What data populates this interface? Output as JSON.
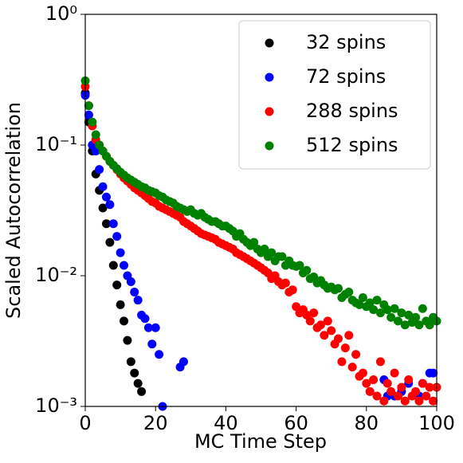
{
  "chart_data": {
    "type": "scatter",
    "xlabel": "MC Time Step",
    "ylabel": "Scaled Autocorrelation",
    "xlim": [
      0,
      100
    ],
    "xticks": [
      0,
      20,
      40,
      60,
      80,
      100
    ],
    "ylim": [
      0.001,
      1
    ],
    "ylog": true,
    "yticks": [
      {
        "value": 0.001,
        "label": "10⁻³"
      },
      {
        "value": 0.01,
        "label": "10⁻²"
      },
      {
        "value": 0.1,
        "label": "10⁻¹"
      },
      {
        "value": 1,
        "label": "10⁰"
      }
    ],
    "legend": "upper right",
    "series": [
      {
        "name": "32 spins",
        "color": "#000000",
        "x": [
          0,
          1,
          2,
          3,
          4,
          5,
          6,
          7,
          8,
          9,
          10,
          11,
          12,
          13,
          14,
          15,
          16
        ],
        "values": [
          0.25,
          0.15,
          0.09,
          0.06,
          0.045,
          0.033,
          0.025,
          0.018,
          0.012,
          0.0085,
          0.006,
          0.0045,
          0.0032,
          0.0022,
          0.0018,
          0.0015,
          0.0013
        ]
      },
      {
        "name": "72 spins",
        "color": "#0000ff",
        "x": [
          0,
          1,
          2,
          3,
          4,
          5,
          6,
          7,
          8,
          9,
          10,
          11,
          12,
          13,
          14,
          15,
          16,
          17,
          18,
          19,
          20,
          21,
          22,
          27,
          28,
          85,
          86,
          88,
          90,
          92,
          95,
          96,
          98,
          99
        ],
        "values": [
          0.24,
          0.17,
          0.1,
          0.09,
          0.065,
          0.048,
          0.04,
          0.035,
          0.025,
          0.02,
          0.015,
          0.012,
          0.01,
          0.009,
          0.0075,
          0.0065,
          0.005,
          0.0047,
          0.004,
          0.003,
          0.004,
          0.0025,
          0.001,
          0.002,
          0.0022,
          0.0016,
          0.0012,
          0.0012,
          0.0013,
          0.0015,
          0.0012,
          0.0015,
          0.0018,
          0.0018
        ]
      },
      {
        "name": "288 spins",
        "color": "#ff0000",
        "x": [
          0,
          1,
          2,
          3,
          4,
          5,
          6,
          7,
          8,
          9,
          10,
          11,
          12,
          13,
          14,
          15,
          16,
          17,
          18,
          19,
          20,
          21,
          22,
          23,
          24,
          25,
          26,
          27,
          28,
          29,
          30,
          31,
          32,
          33,
          34,
          35,
          36,
          37,
          38,
          39,
          40,
          41,
          42,
          43,
          44,
          45,
          46,
          47,
          48,
          49,
          50,
          51,
          52,
          53,
          54,
          55,
          56,
          57,
          58,
          59,
          60,
          61,
          62,
          63,
          64,
          65,
          66,
          67,
          68,
          69,
          70,
          71,
          72,
          73,
          74,
          75,
          76,
          77,
          78,
          79,
          80,
          81,
          82,
          83,
          84,
          85,
          86,
          87,
          88,
          89,
          90,
          91,
          92,
          93,
          94,
          95,
          96,
          97,
          98,
          99,
          100
        ],
        "values": [
          0.28,
          0.2,
          0.14,
          0.11,
          0.1,
          0.09,
          0.082,
          0.075,
          0.07,
          0.065,
          0.06,
          0.056,
          0.053,
          0.05,
          0.047,
          0.045,
          0.043,
          0.041,
          0.039,
          0.037,
          0.036,
          0.034,
          0.033,
          0.032,
          0.031,
          0.03,
          0.029,
          0.028,
          0.026,
          0.025,
          0.024,
          0.023,
          0.022,
          0.021,
          0.0205,
          0.02,
          0.0195,
          0.019,
          0.018,
          0.0175,
          0.017,
          0.0165,
          0.016,
          0.015,
          0.0145,
          0.014,
          0.0135,
          0.013,
          0.0125,
          0.012,
          0.0115,
          0.011,
          0.0105,
          0.0095,
          0.01,
          0.009,
          0.0085,
          0.0088,
          0.0075,
          0.0078,
          0.0058,
          0.0052,
          0.0055,
          0.005,
          0.0045,
          0.0052,
          0.004,
          0.0042,
          0.0035,
          0.0045,
          0.0038,
          0.003,
          0.0033,
          0.0022,
          0.0028,
          0.0035,
          0.002,
          0.0025,
          0.0017,
          0.0018,
          0.0015,
          0.0013,
          0.0016,
          0.0012,
          0.0022,
          0.0011,
          0.0015,
          0.0013,
          0.0018,
          0.0012,
          0.0014,
          0.0011,
          0.0016,
          0.0012,
          0.0013,
          0.0011,
          0.0015,
          0.0012,
          0.0014,
          0.0011,
          0.0014
        ]
      },
      {
        "name": "512 spins",
        "color": "#008000",
        "x": [
          0,
          1,
          2,
          3,
          4,
          5,
          6,
          7,
          8,
          9,
          10,
          11,
          12,
          13,
          14,
          15,
          16,
          17,
          18,
          19,
          20,
          21,
          22,
          23,
          24,
          25,
          26,
          27,
          28,
          29,
          30,
          31,
          32,
          33,
          34,
          35,
          36,
          37,
          38,
          39,
          40,
          41,
          42,
          43,
          44,
          45,
          46,
          47,
          48,
          49,
          50,
          51,
          52,
          53,
          54,
          55,
          56,
          57,
          58,
          59,
          60,
          61,
          62,
          63,
          64,
          65,
          66,
          67,
          68,
          69,
          70,
          71,
          72,
          73,
          74,
          75,
          76,
          77,
          78,
          79,
          80,
          81,
          82,
          83,
          84,
          85,
          86,
          87,
          88,
          89,
          90,
          91,
          92,
          93,
          94,
          95,
          96,
          97,
          98,
          99,
          100
        ],
        "values": [
          0.31,
          0.2,
          0.15,
          0.12,
          0.1,
          0.09,
          0.082,
          0.075,
          0.07,
          0.066,
          0.062,
          0.059,
          0.056,
          0.054,
          0.052,
          0.05,
          0.048,
          0.047,
          0.045,
          0.044,
          0.043,
          0.041,
          0.04,
          0.038,
          0.037,
          0.036,
          0.034,
          0.033,
          0.032,
          0.031,
          0.032,
          0.03,
          0.029,
          0.03,
          0.028,
          0.027,
          0.026,
          0.026,
          0.025,
          0.024,
          0.024,
          0.023,
          0.022,
          0.02,
          0.021,
          0.019,
          0.018,
          0.017,
          0.018,
          0.016,
          0.015,
          0.016,
          0.014,
          0.015,
          0.013,
          0.014,
          0.014,
          0.012,
          0.013,
          0.012,
          0.0118,
          0.012,
          0.0105,
          0.011,
          0.0095,
          0.0098,
          0.0088,
          0.0092,
          0.0085,
          0.008,
          0.0082,
          0.0078,
          0.008,
          0.0068,
          0.0072,
          0.0075,
          0.0065,
          0.0062,
          0.006,
          0.0068,
          0.0058,
          0.0062,
          0.0055,
          0.0065,
          0.0052,
          0.006,
          0.0055,
          0.0048,
          0.0056,
          0.0045,
          0.0052,
          0.0042,
          0.005,
          0.0044,
          0.0048,
          0.0042,
          0.0056,
          0.0045,
          0.0042,
          0.0048,
          0.0045
        ]
      }
    ]
  }
}
